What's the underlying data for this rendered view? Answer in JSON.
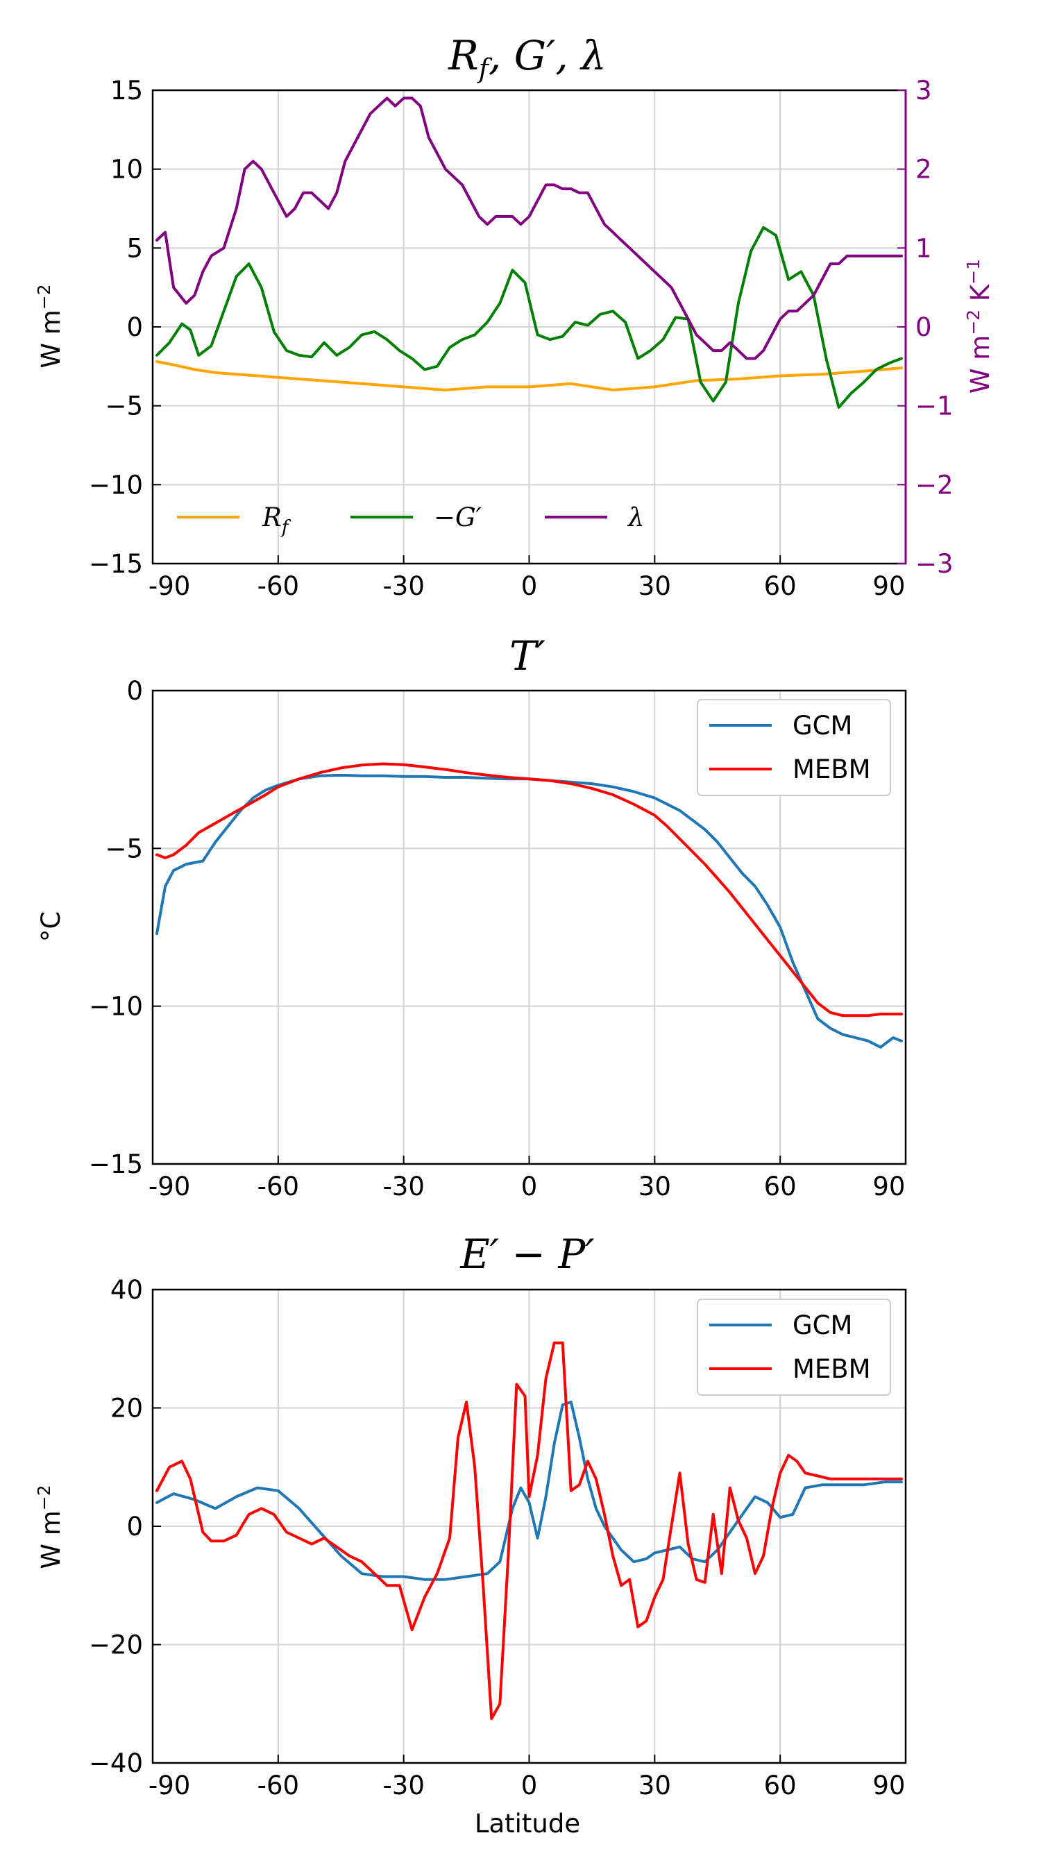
{
  "chart_data": [
    {
      "type": "line",
      "title": "R_f, G′, λ",
      "xlabel": "",
      "ylabel": "W m⁻²",
      "ylabel_right": "W m⁻² K⁻¹",
      "xlim": [
        -90,
        90
      ],
      "ylim": [
        -15,
        15
      ],
      "ylim_right": [
        -3,
        3
      ],
      "xticks": [
        "-90",
        "-60",
        "-30",
        "0",
        "30",
        "60",
        "90"
      ],
      "yticks": [
        "−15",
        "−10",
        "−5",
        "0",
        "5",
        "10",
        "15"
      ],
      "yticks_right": [
        "−3",
        "−2",
        "−1",
        "0",
        "1",
        "2",
        "3"
      ],
      "grid": true,
      "legend": "bottom-left, horizontal",
      "series": [
        {
          "name": "R_f",
          "color": "#ffa500",
          "axis": "left",
          "x": [
            -89,
            -85,
            -80,
            -75,
            -70,
            -60,
            -50,
            -40,
            -30,
            -20,
            -10,
            0,
            10,
            20,
            30,
            40,
            50,
            60,
            70,
            80,
            89
          ],
          "y": [
            -2.2,
            -2.4,
            -2.7,
            -2.9,
            -3.0,
            -3.2,
            -3.4,
            -3.6,
            -3.8,
            -4.0,
            -3.8,
            -3.8,
            -3.6,
            -4.0,
            -3.8,
            -3.4,
            -3.3,
            -3.1,
            -3.0,
            -2.8,
            -2.6
          ]
        },
        {
          "name": "−G′",
          "color": "#008000",
          "axis": "left",
          "x": [
            -89,
            -86,
            -83,
            -81,
            -79,
            -76,
            -73,
            -70,
            -67,
            -64,
            -61,
            -58,
            -55,
            -52,
            -49,
            -46,
            -43,
            -40,
            -37,
            -34,
            -31,
            -28,
            -25,
            -22,
            -19,
            -16,
            -13,
            -10,
            -7,
            -4,
            -1,
            2,
            5,
            8,
            11,
            14,
            17,
            20,
            23,
            26,
            29,
            32,
            35,
            38,
            41,
            44,
            47,
            50,
            53,
            56,
            59,
            62,
            65,
            68,
            71,
            74,
            77,
            80,
            83,
            86,
            89
          ],
          "y": [
            -1.8,
            -1.0,
            0.2,
            -0.2,
            -1.8,
            -1.2,
            1.0,
            3.2,
            4.0,
            2.5,
            -0.3,
            -1.5,
            -1.8,
            -1.9,
            -1.0,
            -1.8,
            -1.3,
            -0.5,
            -0.3,
            -0.8,
            -1.5,
            -2.0,
            -2.7,
            -2.5,
            -1.3,
            -0.8,
            -0.5,
            0.3,
            1.5,
            3.6,
            2.8,
            -0.5,
            -0.8,
            -0.6,
            0.3,
            0.1,
            0.8,
            1.0,
            0.3,
            -2.0,
            -1.5,
            -0.8,
            0.6,
            0.5,
            -3.5,
            -4.7,
            -3.5,
            1.5,
            4.8,
            6.3,
            5.8,
            3.0,
            3.5,
            2.0,
            -2.0,
            -5.1,
            -4.2,
            -3.5,
            -2.7,
            -2.3,
            -2.0
          ]
        },
        {
          "name": "λ",
          "color": "#800080",
          "axis": "right",
          "x": [
            -89,
            -87,
            -85,
            -82,
            -80,
            -78,
            -76,
            -73,
            -70,
            -68,
            -66,
            -64,
            -62,
            -60,
            -58,
            -56,
            -54,
            -52,
            -50,
            -48,
            -46,
            -44,
            -42,
            -40,
            -38,
            -36,
            -34,
            -32,
            -30,
            -28,
            -26,
            -24,
            -22,
            -20,
            -18,
            -16,
            -14,
            -12,
            -10,
            -8,
            -6,
            -4,
            -2,
            0,
            2,
            4,
            6,
            8,
            10,
            12,
            14,
            16,
            18,
            20,
            22,
            24,
            26,
            28,
            30,
            32,
            34,
            36,
            38,
            40,
            42,
            44,
            46,
            48,
            50,
            52,
            54,
            56,
            58,
            60,
            62,
            64,
            66,
            68,
            70,
            72,
            74,
            76,
            78,
            80,
            82,
            84,
            86,
            88,
            89
          ],
          "y": [
            1.1,
            1.2,
            0.5,
            0.3,
            0.4,
            0.7,
            0.9,
            1.0,
            1.5,
            2.0,
            2.1,
            2.0,
            1.8,
            1.6,
            1.4,
            1.5,
            1.7,
            1.7,
            1.6,
            1.5,
            1.7,
            2.1,
            2.3,
            2.5,
            2.7,
            2.8,
            2.9,
            2.8,
            2.9,
            2.9,
            2.8,
            2.4,
            2.2,
            2.0,
            1.9,
            1.8,
            1.6,
            1.4,
            1.3,
            1.4,
            1.4,
            1.4,
            1.3,
            1.4,
            1.6,
            1.8,
            1.8,
            1.75,
            1.75,
            1.7,
            1.7,
            1.5,
            1.3,
            1.2,
            1.1,
            1.0,
            0.9,
            0.8,
            0.7,
            0.6,
            0.5,
            0.3,
            0.1,
            -0.1,
            -0.2,
            -0.3,
            -0.3,
            -0.2,
            -0.3,
            -0.4,
            -0.4,
            -0.3,
            -0.1,
            0.1,
            0.2,
            0.2,
            0.3,
            0.4,
            0.6,
            0.8,
            0.8,
            0.9,
            0.9,
            0.9,
            0.9,
            0.9,
            0.9,
            0.9,
            0.9
          ]
        }
      ]
    },
    {
      "type": "line",
      "title": "T′",
      "xlabel": "",
      "ylabel": "°C",
      "xlim": [
        -90,
        90
      ],
      "ylim": [
        -15,
        0
      ],
      "xticks": [
        "-90",
        "-60",
        "-30",
        "0",
        "30",
        "60",
        "90"
      ],
      "yticks": [
        "−15",
        "−10",
        "−5",
        "0"
      ],
      "grid": true,
      "legend": "top-right",
      "series": [
        {
          "name": "GCM",
          "color": "#1f77b4",
          "x": [
            -89,
            -87,
            -85,
            -82,
            -78,
            -75,
            -72,
            -69,
            -66,
            -63,
            -60,
            -55,
            -50,
            -45,
            -40,
            -35,
            -30,
            -25,
            -20,
            -15,
            -10,
            -5,
            0,
            5,
            10,
            15,
            20,
            25,
            30,
            33,
            36,
            39,
            42,
            45,
            48,
            51,
            54,
            57,
            60,
            63,
            66,
            69,
            72,
            75,
            78,
            81,
            84,
            87,
            89
          ],
          "y": [
            -7.7,
            -6.2,
            -5.7,
            -5.5,
            -5.4,
            -4.8,
            -4.3,
            -3.8,
            -3.4,
            -3.15,
            -3.0,
            -2.8,
            -2.7,
            -2.68,
            -2.7,
            -2.7,
            -2.72,
            -2.72,
            -2.75,
            -2.75,
            -2.78,
            -2.8,
            -2.8,
            -2.85,
            -2.9,
            -2.95,
            -3.05,
            -3.2,
            -3.4,
            -3.6,
            -3.8,
            -4.1,
            -4.4,
            -4.8,
            -5.3,
            -5.8,
            -6.2,
            -6.8,
            -7.5,
            -8.6,
            -9.5,
            -10.4,
            -10.7,
            -10.9,
            -11.0,
            -11.1,
            -11.3,
            -11.0,
            -11.1
          ]
        },
        {
          "name": "MEBM",
          "color": "#ff0000",
          "x": [
            -89,
            -87,
            -85,
            -82,
            -79,
            -75,
            -71,
            -67,
            -63,
            -60,
            -55,
            -50,
            -45,
            -40,
            -35,
            -30,
            -25,
            -20,
            -15,
            -10,
            -5,
            0,
            5,
            10,
            15,
            20,
            25,
            30,
            33,
            36,
            39,
            42,
            45,
            48,
            51,
            54,
            57,
            60,
            63,
            66,
            69,
            72,
            75,
            78,
            81,
            84,
            87,
            89
          ],
          "y": [
            -5.2,
            -5.3,
            -5.2,
            -4.9,
            -4.5,
            -4.2,
            -3.9,
            -3.6,
            -3.3,
            -3.05,
            -2.8,
            -2.6,
            -2.45,
            -2.36,
            -2.32,
            -2.35,
            -2.42,
            -2.5,
            -2.6,
            -2.68,
            -2.75,
            -2.8,
            -2.85,
            -2.95,
            -3.1,
            -3.3,
            -3.6,
            -3.95,
            -4.3,
            -4.7,
            -5.1,
            -5.5,
            -5.95,
            -6.4,
            -6.9,
            -7.4,
            -7.9,
            -8.4,
            -8.9,
            -9.4,
            -9.9,
            -10.2,
            -10.3,
            -10.3,
            -10.3,
            -10.25,
            -10.25,
            -10.25
          ]
        }
      ]
    },
    {
      "type": "line",
      "title": "E′ − P′",
      "xlabel": "Latitude",
      "ylabel": "W m⁻²",
      "xlim": [
        -90,
        90
      ],
      "ylim": [
        -40,
        40
      ],
      "xticks": [
        "-90",
        "-60",
        "-30",
        "0",
        "30",
        "60",
        "90"
      ],
      "yticks": [
        "−40",
        "−20",
        "0",
        "20",
        "40"
      ],
      "grid": true,
      "legend": "top-right",
      "series": [
        {
          "name": "GCM",
          "color": "#1f77b4",
          "x": [
            -89,
            -85,
            -80,
            -75,
            -70,
            -65,
            -60,
            -55,
            -50,
            -45,
            -40,
            -35,
            -30,
            -25,
            -20,
            -15,
            -10,
            -7,
            -4,
            -2,
            0,
            2,
            4,
            6,
            8,
            10,
            12,
            14,
            16,
            18,
            20,
            22,
            25,
            28,
            30,
            33,
            36,
            39,
            42,
            45,
            48,
            51,
            54,
            57,
            60,
            63,
            66,
            70,
            75,
            80,
            85,
            89
          ],
          "y": [
            4.0,
            5.5,
            4.5,
            3.0,
            5.0,
            6.5,
            6.0,
            3.0,
            -1.0,
            -5.0,
            -8.0,
            -8.5,
            -8.5,
            -9.0,
            -9.0,
            -8.5,
            -8.0,
            -6.0,
            3.0,
            6.5,
            4.0,
            -2.0,
            5.0,
            14.0,
            20.5,
            21.0,
            15.0,
            8.0,
            3.0,
            0.0,
            -2.0,
            -4.0,
            -6.0,
            -5.5,
            -4.5,
            -4.0,
            -3.5,
            -5.5,
            -6.0,
            -4.0,
            -1.0,
            2.0,
            5.0,
            4.0,
            1.5,
            2.0,
            6.5,
            7.0,
            7.0,
            7.0,
            7.5,
            7.5
          ]
        },
        {
          "name": "MEBM",
          "color": "#ff0000",
          "x": [
            -89,
            -86,
            -83,
            -81,
            -78,
            -76,
            -73,
            -70,
            -67,
            -64,
            -61,
            -58,
            -55,
            -52,
            -49,
            -46,
            -43,
            -40,
            -37,
            -34,
            -31,
            -28,
            -25,
            -22,
            -19,
            -17,
            -15,
            -13,
            -11,
            -9,
            -7,
            -5,
            -3,
            -1,
            0,
            2,
            4,
            6,
            8,
            10,
            12,
            14,
            16,
            18,
            20,
            22,
            24,
            26,
            28,
            30,
            32,
            34,
            36,
            38,
            40,
            42,
            44,
            46,
            48,
            50,
            52,
            54,
            56,
            58,
            60,
            62,
            64,
            66,
            69,
            72,
            75,
            78,
            81,
            84,
            87,
            89
          ],
          "y": [
            6.0,
            10.0,
            11.0,
            8.0,
            -1.0,
            -2.5,
            -2.5,
            -1.5,
            2.0,
            3.0,
            2.0,
            -1.0,
            -2.0,
            -3.0,
            -2.0,
            -3.5,
            -5.0,
            -6.0,
            -8.0,
            -10.0,
            -10.0,
            -17.5,
            -12.0,
            -8.0,
            -2.0,
            15.0,
            21.0,
            10.0,
            -10.0,
            -32.5,
            -30.0,
            -5.0,
            24.0,
            22.0,
            5.0,
            12.0,
            25.0,
            31.0,
            31.0,
            6.0,
            7.0,
            11.0,
            8.0,
            2.0,
            -5.0,
            -10.0,
            -9.0,
            -17.0,
            -16.0,
            -12.0,
            -9.0,
            0.0,
            9.0,
            -3.0,
            -9.0,
            -9.5,
            2.0,
            -8.0,
            6.5,
            1.0,
            -2.0,
            -8.0,
            -5.0,
            3.0,
            9.0,
            12.0,
            11.0,
            9.0,
            8.5,
            8.0,
            8.0,
            8.0,
            8.0,
            8.0,
            8.0,
            8.0
          ]
        }
      ]
    }
  ]
}
